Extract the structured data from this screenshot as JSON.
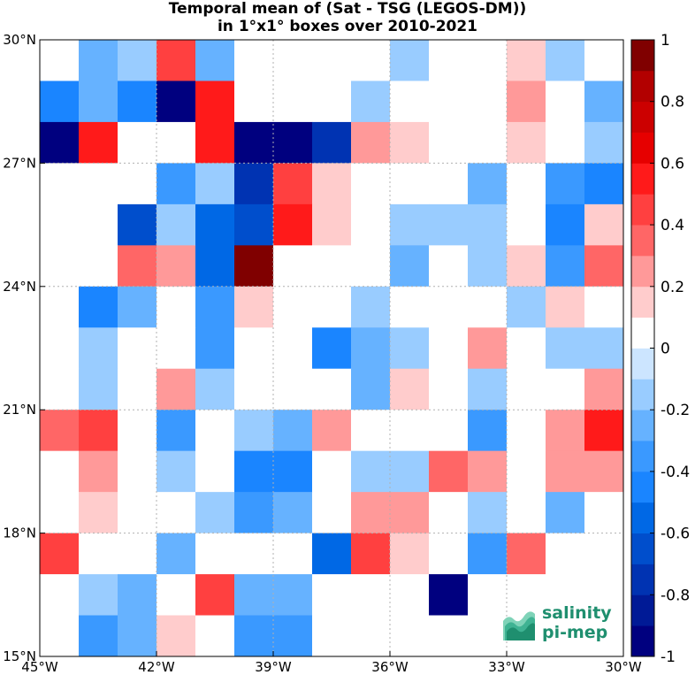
{
  "chart_data": {
    "type": "heatmap",
    "title": [
      "Temporal mean of (Sat - TSG (LEGOS-DM))",
      "in 1°x1° boxes over 2010-2021"
    ],
    "x_tick_labels": [
      "45°W",
      "42°W",
      "39°W",
      "36°W",
      "33°W",
      "30°W"
    ],
    "y_tick_labels": [
      "15°N",
      "18°N",
      "21°N",
      "24°N",
      "27°N",
      "30°N"
    ],
    "x_range": [
      -45,
      -30
    ],
    "y_range": [
      15,
      30
    ],
    "grid": true,
    "colorbar": {
      "range": [
        -1,
        1
      ],
      "levels": 20,
      "tick_values": [
        -1,
        -0.8,
        -0.6,
        -0.4,
        -0.2,
        0,
        0.2,
        0.4,
        0.6,
        0.8,
        1
      ],
      "tick_labels": [
        "-1",
        "-0.8",
        "-0.6",
        "-0.4",
        "-0.2",
        "0",
        "0.2",
        "0.4",
        "0.6",
        "0.8",
        "1"
      ],
      "colors": [
        "#00007f",
        "#001a96",
        "#0033b2",
        "#004ecc",
        "#0068e5",
        "#1a85ff",
        "#3a99ff",
        "#66b2ff",
        "#99ccff",
        "#cce5ff",
        "#ffffff",
        "#ffcccc",
        "#ff9999",
        "#ff6666",
        "#ff4040",
        "#ff1a1a",
        "#e60000",
        "#cc0000",
        "#b20000",
        "#800000"
      ]
    },
    "lon_centers": [
      -44.5,
      -43.5,
      -42.5,
      -41.5,
      -40.5,
      -39.5,
      -38.5,
      -37.5,
      -36.5,
      -35.5,
      -34.5,
      -33.5,
      -32.5,
      -31.5,
      -30.5
    ],
    "lat_centers": [
      29.5,
      28.5,
      27.5,
      26.5,
      25.5,
      24.5,
      23.5,
      22.5,
      21.5,
      20.5,
      19.5,
      18.5,
      17.5,
      16.5,
      15.5
    ],
    "values": [
      [
        0.0,
        -0.25,
        -0.15,
        0.45,
        -0.25,
        0.0,
        0.0,
        0.0,
        0.0,
        -0.15,
        0.0,
        0.0,
        0.15,
        -0.15,
        0.0
      ],
      [
        -0.45,
        -0.25,
        -0.45,
        -0.9,
        0.55,
        0.0,
        0.0,
        0.0,
        -0.15,
        0.0,
        0.0,
        0.0,
        0.25,
        0.0,
        -0.3
      ],
      [
        -0.95,
        0.5,
        0.0,
        0.0,
        0.55,
        -0.95,
        -0.95,
        -0.75,
        0.25,
        0.15,
        0.0,
        0.0,
        0.15,
        0.0,
        -0.15
      ],
      [
        0.0,
        0.0,
        0.0,
        -0.35,
        -0.15,
        -0.75,
        0.45,
        0.15,
        0.0,
        0.0,
        0.0,
        -0.25,
        0.0,
        -0.35,
        -0.45
      ],
      [
        0.0,
        0.0,
        -0.7,
        -0.15,
        -0.55,
        -0.65,
        0.55,
        0.15,
        0.0,
        -0.15,
        -0.15,
        -0.15,
        0.0,
        -0.45,
        0.15
      ],
      [
        0.0,
        0.0,
        0.35,
        0.25,
        -0.55,
        0.95,
        0.0,
        0.0,
        0.0,
        -0.25,
        0.0,
        -0.15,
        0.15,
        -0.35,
        0.35
      ],
      [
        0.0,
        -0.45,
        -0.25,
        0.0,
        -0.35,
        0.15,
        0.0,
        0.0,
        -0.15,
        0.0,
        0.0,
        0.0,
        -0.15,
        0.15,
        0.0
      ],
      [
        0.0,
        -0.15,
        0.0,
        0.0,
        -0.35,
        0.0,
        0.0,
        -0.45,
        -0.25,
        -0.15,
        0.0,
        0.25,
        0.0,
        -0.15,
        -0.15
      ],
      [
        0.0,
        -0.15,
        0.0,
        0.25,
        -0.15,
        0.0,
        0.0,
        0.0,
        -0.25,
        0.15,
        0.0,
        -0.15,
        0.0,
        0.0,
        0.25
      ],
      [
        0.35,
        0.45,
        0.0,
        -0.35,
        0.0,
        -0.15,
        -0.25,
        0.25,
        0.0,
        0.0,
        0.0,
        -0.35,
        0.0,
        0.25,
        0.55
      ],
      [
        0.0,
        0.25,
        0.0,
        -0.15,
        0.0,
        -0.45,
        -0.45,
        0.0,
        -0.15,
        -0.15,
        0.35,
        0.25,
        0.0,
        0.25,
        0.25
      ],
      [
        0.0,
        0.15,
        0.0,
        0.0,
        -0.15,
        -0.35,
        -0.25,
        0.0,
        0.25,
        0.25,
        0.0,
        -0.15,
        0.0,
        -0.25,
        0.0
      ],
      [
        0.45,
        0.0,
        0.0,
        -0.25,
        0.0,
        0.0,
        0.0,
        -0.55,
        0.45,
        0.15,
        0.0,
        -0.35,
        0.35,
        0.0,
        0.0
      ],
      [
        0.0,
        -0.15,
        -0.25,
        0.0,
        0.45,
        -0.25,
        -0.25,
        0.0,
        0.0,
        0.0,
        -0.95,
        0.0,
        0.0,
        0.0,
        0.0
      ],
      [
        0.0,
        -0.35,
        -0.25,
        0.15,
        0.0,
        -0.35,
        -0.35,
        0.0,
        0.0,
        0.0,
        0.0,
        0.0,
        0.0,
        0.0,
        0.0
      ]
    ]
  },
  "logo": {
    "line1": "salinity",
    "line2": "pi-mep"
  }
}
